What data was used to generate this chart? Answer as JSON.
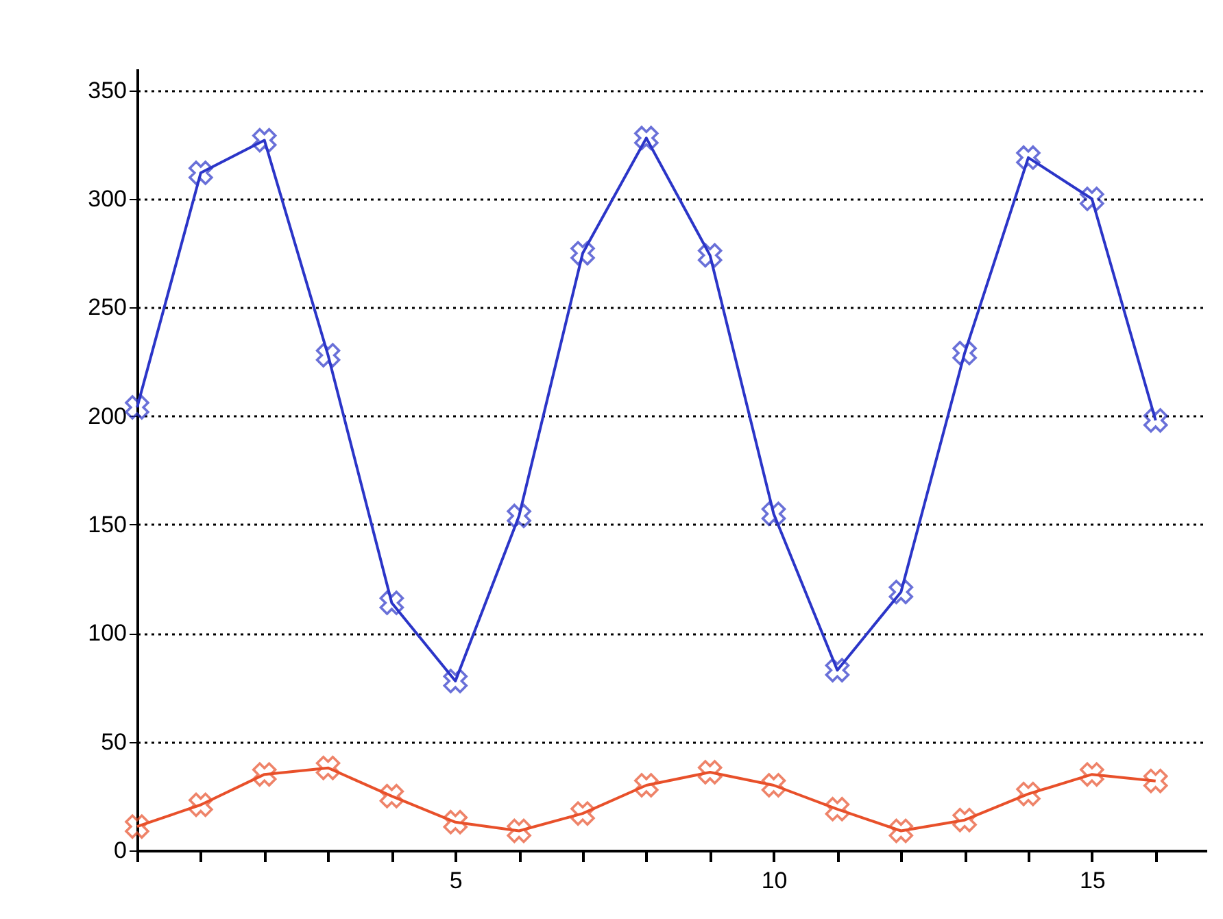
{
  "chart_data": {
    "type": "line",
    "x": [
      0,
      1,
      2,
      3,
      4,
      5,
      6,
      7,
      8,
      9,
      10,
      11,
      12,
      13,
      14,
      15,
      16
    ],
    "series": [
      {
        "color": "#2b35c8",
        "values": [
          204,
          312,
          327,
          228,
          114,
          78,
          154,
          275,
          328,
          274,
          155,
          83,
          119,
          229,
          319,
          300,
          198
        ]
      },
      {
        "color": "#e8502a",
        "values": [
          11,
          21,
          35,
          38,
          25,
          13,
          9,
          17,
          30,
          36,
          30,
          19,
          9,
          14,
          26,
          35,
          32
        ]
      }
    ],
    "xlim": [
      0,
      16.8
    ],
    "xticks": [
      {
        "value": 0,
        "label": null
      },
      {
        "value": 1,
        "label": null
      },
      {
        "value": 2,
        "label": null
      },
      {
        "value": 3,
        "label": null
      },
      {
        "value": 4,
        "label": null
      },
      5,
      {
        "value": 6,
        "label": null
      },
      {
        "value": 7,
        "label": null
      },
      {
        "value": 8,
        "label": null
      },
      {
        "value": 9,
        "label": null
      },
      10,
      {
        "value": 11,
        "label": null
      },
      {
        "value": 12,
        "label": null
      },
      {
        "value": 13,
        "label": null
      },
      {
        "value": 14,
        "label": null
      },
      15,
      {
        "value": 16,
        "label": null
      }
    ],
    "ylim": [
      0,
      360
    ],
    "yticks": [
      0,
      50,
      100,
      150,
      200,
      250,
      300,
      350
    ],
    "grid": "y",
    "marker": "cross",
    "line_style": "solid"
  }
}
